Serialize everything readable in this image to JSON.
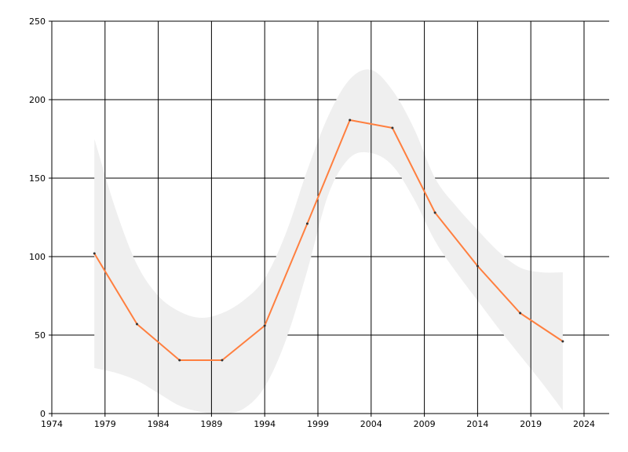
{
  "chart_data": {
    "type": "line",
    "title": "",
    "xlabel": "",
    "ylabel": "",
    "xlim": [
      1974,
      2026
    ],
    "ylim": [
      0,
      250
    ],
    "x_ticks": [
      1974,
      1979,
      1984,
      1989,
      1994,
      1999,
      2004,
      2009,
      2014,
      2019,
      2024
    ],
    "y_ticks": [
      0,
      50,
      100,
      150,
      200,
      250
    ],
    "grid": true,
    "legend": "none",
    "colors": {
      "line": "#ff7f3f",
      "band": "#efefef",
      "grid": "#000000",
      "marker": "#333333"
    },
    "series": [
      {
        "x": [
          1978,
          1982,
          1986,
          1990,
          1994,
          1998,
          2002,
          2006,
          2010,
          2014,
          2018,
          2022
        ],
        "values": [
          102,
          57,
          34,
          34,
          56,
          121,
          187,
          182,
          128,
          94,
          64,
          46
        ]
      }
    ],
    "band": {
      "x": [
        1978,
        1980,
        1982,
        1984,
        1986,
        1988,
        1990,
        1992,
        1994,
        1996,
        1998,
        2000,
        2002,
        2004,
        2006,
        2008,
        2010,
        2012,
        2014,
        2016,
        2018,
        2020,
        2022
      ],
      "upper": [
        175,
        130,
        95,
        75,
        65,
        61,
        64,
        72,
        86,
        115,
        155,
        190,
        213,
        219,
        206,
        182,
        150,
        132,
        117,
        103,
        93,
        90,
        90
      ],
      "lower": [
        29,
        26,
        21,
        13,
        5,
        1,
        0,
        3,
        17,
        47,
        91,
        140,
        163,
        166,
        158,
        137,
        110,
        90,
        72,
        54,
        37,
        20,
        2
      ]
    }
  }
}
